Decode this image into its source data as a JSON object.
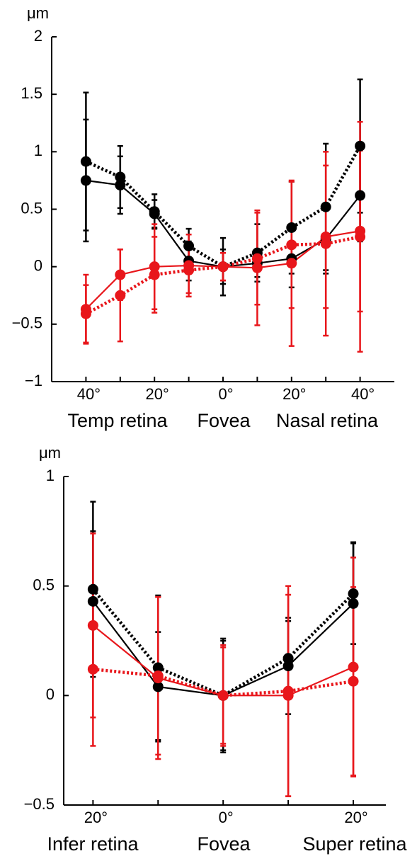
{
  "chart_data": [
    {
      "type": "line",
      "ylabel": "μm",
      "x": [
        -40,
        -30,
        -20,
        -10,
        0,
        10,
        20,
        30,
        40
      ],
      "xlim": [
        -50,
        50
      ],
      "xticks": [
        {
          "value": -40,
          "label": "40°"
        },
        {
          "value": -20,
          "label": "20°"
        },
        {
          "value": 0,
          "label": "0°"
        },
        {
          "value": 20,
          "label": "20°"
        },
        {
          "value": 40,
          "label": "40°"
        }
      ],
      "ylim": [
        -1,
        2
      ],
      "yticks": [
        {
          "value": -1,
          "label": "−1"
        },
        {
          "value": -0.5,
          "label": "−0.5"
        },
        0,
        0.5,
        1,
        1.5,
        2
      ],
      "region_labels": [
        "Temp  retina",
        "Fovea",
        "Nasal retina"
      ],
      "series": [
        {
          "color": "#000000",
          "dash": "dotted",
          "values": [
            0.915,
            0.78,
            0.48,
            0.18,
            0,
            0.12,
            0.34,
            0.52,
            1.05
          ],
          "errors": [
            0.6,
            0.27,
            0.15,
            0.15,
            0.25,
            0.25,
            0.4,
            0.55,
            0.58
          ]
        },
        {
          "color": "#000000",
          "dash": "solid",
          "values": [
            0.75,
            0.71,
            0.46,
            0.05,
            0,
            0.03,
            0.07,
            0.24,
            0.62
          ],
          "errors": [
            0.53,
            0.25,
            0.12,
            0.17,
            0.15,
            0.12,
            0.25,
            0.3,
            0.4
          ]
        },
        {
          "color": "#e8161b",
          "dash": "solid",
          "values": [
            -0.37,
            -0.07,
            0,
            0.01,
            0,
            -0.01,
            0.03,
            0.26,
            0.31
          ],
          "errors": [
            0.3,
            0.22,
            0.37,
            0.27,
            0.12,
            0.5,
            0.72,
            0.62,
            0.7
          ]
        },
        {
          "color": "#e8161b",
          "dash": "dotted",
          "values": [
            -0.41,
            -0.25,
            -0.07,
            -0.03,
            0,
            0.07,
            0.19,
            0.2,
            0.26
          ],
          "errors": [
            0.25,
            0.4,
            0.33,
            0.2,
            0.12,
            0.4,
            0.55,
            0.8,
            1.0
          ]
        }
      ]
    },
    {
      "type": "line",
      "ylabel": "μm",
      "x": [
        -20,
        -10,
        0,
        10,
        20
      ],
      "xlim": [
        -24.5,
        25
      ],
      "xticks": [
        {
          "value": -20,
          "label": "20°"
        },
        {
          "value": 0,
          "label": "0°"
        },
        {
          "value": 20,
          "label": "20°"
        }
      ],
      "ylim": [
        -0.5,
        1
      ],
      "yticks": [
        {
          "value": -0.5,
          "label": "−0.5"
        },
        0,
        0.5,
        1
      ],
      "region_labels": [
        "Infer retina",
        "Fovea",
        "Super retina"
      ],
      "series": [
        {
          "color": "#000000",
          "dash": "dotted",
          "values": [
            0.485,
            0.127,
            0,
            0.17,
            0.465
          ],
          "errors": [
            0.4,
            0.33,
            0.25,
            0.17,
            0.23
          ]
        },
        {
          "color": "#000000",
          "dash": "solid",
          "values": [
            0.43,
            0.04,
            0,
            0.135,
            0.42
          ],
          "errors": [
            0.32,
            0.25,
            0.26,
            0.22,
            0.28
          ]
        },
        {
          "color": "#e8161b",
          "dash": "solid",
          "values": [
            0.32,
            0.08,
            0,
            0,
            0.13
          ],
          "errors": [
            0.42,
            0.37,
            0.23,
            0.46,
            0.5
          ]
        },
        {
          "color": "#e8161b",
          "dash": "dotted",
          "values": [
            0.12,
            0.09,
            0,
            0.02,
            0.065
          ],
          "errors": [
            0.35,
            0.36,
            0.22,
            0.48,
            0.43
          ]
        }
      ]
    }
  ]
}
